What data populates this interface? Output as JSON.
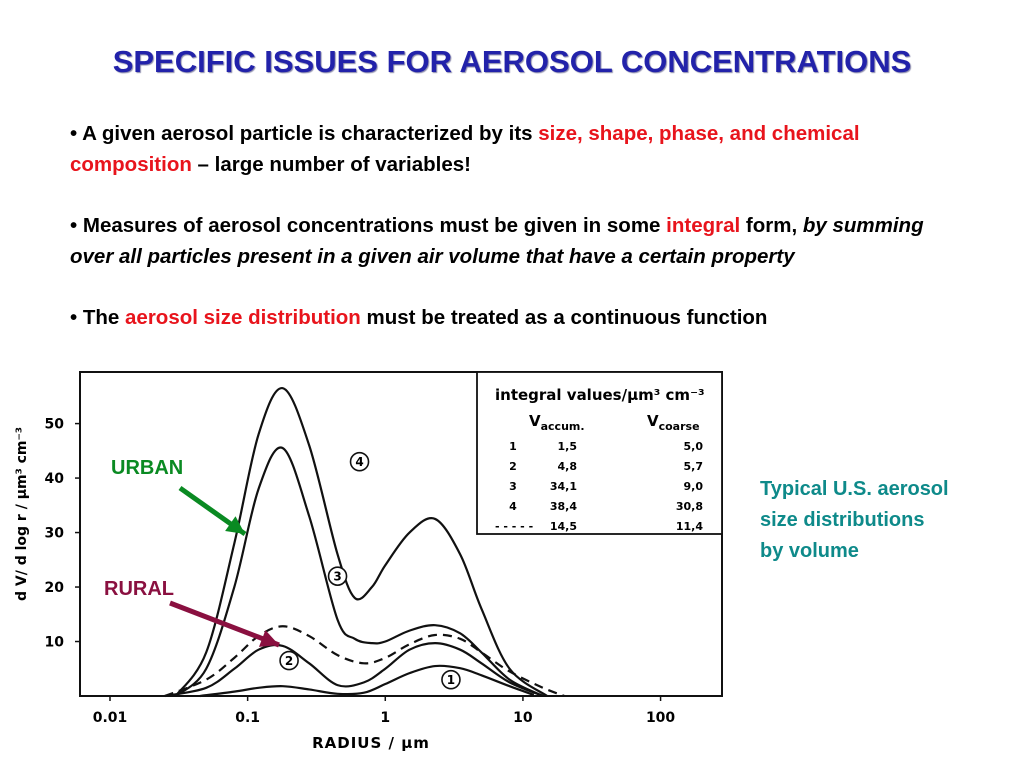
{
  "title": "SPECIFIC ISSUES FOR AEROSOL CONCENTRATIONS",
  "bullets": {
    "b1_a": "A given aerosol particle is characterized by its ",
    "b1_red": "size, shape, phase, and chemical composition",
    "b1_b": " – large number of variables!",
    "b2_a": "Measures of aerosol concentrations must be given in some ",
    "b2_red": "integral",
    "b2_b": " form, ",
    "b2_it": "by summing over all particles present in a given air volume that have a certain property",
    "b3_a": "The ",
    "b3_red": "aerosol size distribution",
    "b3_b": " must be treated as a continuous function"
  },
  "side_note": [
    "Typical U.S. aerosol",
    "size distributions",
    "by volume"
  ],
  "annotations": {
    "urban": "URBAN",
    "rural": "RURAL"
  },
  "colors": {
    "title": "#2222aa",
    "red": "#e8141c",
    "teal": "#0e8a8a",
    "urban": "#0a8a22",
    "rural": "#8a1040"
  },
  "chart_data": {
    "type": "line",
    "xscale": "log",
    "xlim": [
      0.01,
      200
    ],
    "ylim": [
      0,
      58
    ],
    "xlabel": "RADIUS  / μm",
    "ylabel": "d V/ d log r  / μm³ cm⁻³",
    "xticks": [
      {
        "v": 0.01,
        "t": "0.01"
      },
      {
        "v": 0.1,
        "t": "0.1"
      },
      {
        "v": 1,
        "t": "1"
      },
      {
        "v": 10,
        "t": "10"
      },
      {
        "v": 100,
        "t": "100"
      }
    ],
    "yticks": [
      {
        "v": 10,
        "t": "10"
      },
      {
        "v": 20,
        "t": "20"
      },
      {
        "v": 30,
        "t": "30"
      },
      {
        "v": 40,
        "t": "40"
      },
      {
        "v": 50,
        "t": "50"
      }
    ],
    "series": [
      {
        "name": "1",
        "style": "solid",
        "x": [
          0.045,
          0.08,
          0.12,
          0.18,
          0.28,
          0.45,
          0.7,
          1.0,
          1.5,
          2.3,
          3.5,
          5,
          8,
          12
        ],
        "y": [
          0,
          0.8,
          1.5,
          1.8,
          1.2,
          0.4,
          0.6,
          2.2,
          4.2,
          5.5,
          5.1,
          3.8,
          1.8,
          0.2
        ]
      },
      {
        "name": "2",
        "style": "solid",
        "x": [
          0.025,
          0.05,
          0.08,
          0.12,
          0.18,
          0.28,
          0.45,
          0.7,
          1.0,
          1.5,
          2.3,
          3.5,
          5,
          8,
          14
        ],
        "y": [
          0,
          1.5,
          5,
          8.5,
          9.2,
          6,
          2,
          2.5,
          5,
          8.5,
          9.7,
          8.5,
          6,
          2.5,
          0
        ]
      },
      {
        "name": "3",
        "style": "solid",
        "x": [
          0.03,
          0.05,
          0.08,
          0.12,
          0.18,
          0.28,
          0.45,
          0.6,
          0.8,
          1.0,
          1.5,
          2.3,
          3.5,
          5,
          8,
          14
        ],
        "y": [
          0,
          5,
          20,
          38,
          45.5,
          33,
          14,
          10.5,
          9.7,
          10,
          12,
          13,
          11.5,
          8,
          3,
          0
        ]
      },
      {
        "name": "4",
        "style": "solid",
        "x": [
          0.03,
          0.05,
          0.08,
          0.12,
          0.18,
          0.28,
          0.45,
          0.6,
          0.8,
          1.0,
          1.5,
          2.3,
          3.5,
          5,
          8,
          15
        ],
        "y": [
          0,
          8,
          28,
          48,
          56.5,
          46,
          26,
          18,
          20,
          24,
          30,
          32.5,
          26,
          16,
          5,
          0
        ]
      },
      {
        "name": "dashed",
        "style": "dashed",
        "x": [
          0.025,
          0.05,
          0.08,
          0.12,
          0.18,
          0.28,
          0.45,
          0.7,
          1.0,
          1.5,
          2.3,
          3.5,
          5,
          8,
          14,
          20
        ],
        "y": [
          0,
          3,
          7,
          11,
          12.8,
          11,
          7.5,
          6,
          7,
          9.5,
          11.2,
          10.5,
          8,
          4.5,
          1.5,
          0
        ]
      }
    ],
    "circle_labels": [
      {
        "t": "4",
        "x": 0.65,
        "y": 43
      },
      {
        "t": "3",
        "x": 0.45,
        "y": 22
      },
      {
        "t": "2",
        "x": 0.2,
        "y": 6.5
      },
      {
        "t": "1",
        "x": 3.0,
        "y": 3
      }
    ],
    "legend_table": {
      "title": "integral  values/μm³ cm⁻³",
      "col1": "V",
      "col1_sub": "accum.",
      "col2": "V",
      "col2_sub": "coarse",
      "rows": [
        [
          "1",
          "1,5",
          "5,0"
        ],
        [
          "2",
          "4,8",
          "5,7"
        ],
        [
          "3",
          "34,1",
          "9,0"
        ],
        [
          "4",
          "38,4",
          "30,8"
        ],
        [
          "- - - - -",
          "14,5",
          "11,4"
        ]
      ]
    }
  }
}
